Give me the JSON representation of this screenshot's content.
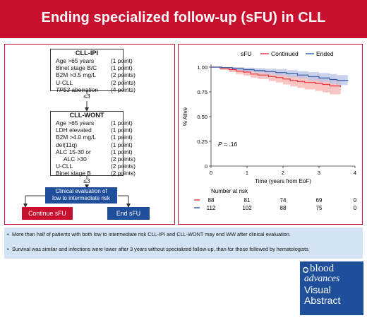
{
  "header": {
    "title": "Ending specialized follow-up (sFU) in CLL"
  },
  "flowchart": {
    "cll_ipi": {
      "title": "CLL-IPI",
      "criteria": [
        {
          "label": "Age >65 years",
          "points": "(1 point)",
          "italic": false,
          "indent": false
        },
        {
          "label": "Binet stage B/C",
          "points": "(1 point)",
          "italic": false,
          "indent": false
        },
        {
          "label": "B2M >3.5 mg/L",
          "points": "(2 points)",
          "italic": false,
          "indent": false
        },
        {
          "label": "U-CLL",
          "points": "(2 points)",
          "italic": false,
          "indent": false
        },
        {
          "label": "TP53",
          "suffix": " aberration",
          "points": "(4 points)",
          "italic": true,
          "indent": false
        }
      ]
    },
    "threshold_1": "≤3",
    "cll_wont": {
      "title": "CLL-WONT",
      "criteria": [
        {
          "label": "Age >65 years",
          "points": "(1 point)",
          "indent": false
        },
        {
          "label": "LDH elevated",
          "points": "(1 point)",
          "indent": false
        },
        {
          "label": "B2M >4.0 mg/L",
          "points": "(1 point)",
          "indent": false
        },
        {
          "label": "del(11q)",
          "points": "(1 point)",
          "indent": false
        },
        {
          "label": "ALC 15-30 or",
          "points": "(1 point)",
          "indent": false
        },
        {
          "label": "ALC >30",
          "points": "(2 points)",
          "indent": true
        },
        {
          "label": "U-CLL",
          "points": "(2 points)",
          "indent": false
        },
        {
          "label": "Binet stage B",
          "points": "(2 points)",
          "indent": false
        }
      ]
    },
    "threshold_2": "≤3",
    "evaluation": {
      "line1": "Clinical evaluation of",
      "line2": "low to intermediate risk"
    },
    "outcomes": {
      "continue": "Continue sFU",
      "end": "End sFU"
    }
  },
  "chart_data": {
    "type": "line",
    "subtype": "kaplan-meier",
    "legend_title": "sFU",
    "legend_position": "top",
    "series": [
      {
        "name": "Continued",
        "color": "#e8313a",
        "band_color": "#f5b1ae",
        "x": [
          0,
          0.25,
          0.5,
          0.7,
          0.9,
          1.1,
          1.3,
          1.6,
          1.8,
          2.0,
          2.2,
          2.4,
          2.6,
          2.9,
          3.1,
          3.3,
          3.6
        ],
        "y": [
          1.0,
          0.99,
          0.975,
          0.96,
          0.95,
          0.93,
          0.92,
          0.905,
          0.895,
          0.88,
          0.865,
          0.855,
          0.845,
          0.835,
          0.825,
          0.81,
          0.8
        ],
        "lower": [
          1.0,
          0.97,
          0.95,
          0.93,
          0.915,
          0.895,
          0.88,
          0.86,
          0.845,
          0.825,
          0.805,
          0.79,
          0.775,
          0.76,
          0.745,
          0.725,
          0.71
        ],
        "upper": [
          1.0,
          1.0,
          0.995,
          0.99,
          0.98,
          0.97,
          0.96,
          0.95,
          0.94,
          0.93,
          0.92,
          0.915,
          0.905,
          0.895,
          0.89,
          0.88,
          0.875
        ]
      },
      {
        "name": "Ended",
        "color": "#2e5aa6",
        "band_color": "#b9c3e4",
        "x": [
          0,
          0.3,
          0.6,
          0.9,
          1.2,
          1.5,
          1.8,
          2.1,
          2.4,
          2.7,
          3.0,
          3.3,
          3.5,
          3.8
        ],
        "y": [
          1.0,
          0.995,
          0.985,
          0.975,
          0.965,
          0.955,
          0.945,
          0.935,
          0.92,
          0.905,
          0.89,
          0.875,
          0.865,
          0.86
        ],
        "lower": [
          1.0,
          0.985,
          0.97,
          0.955,
          0.94,
          0.93,
          0.915,
          0.9,
          0.885,
          0.865,
          0.85,
          0.83,
          0.82,
          0.81
        ],
        "upper": [
          1.0,
          1.0,
          1.0,
          0.995,
          0.99,
          0.985,
          0.98,
          0.97,
          0.96,
          0.95,
          0.94,
          0.93,
          0.92,
          0.92
        ]
      }
    ],
    "xlabel": "Time (years from EoF)",
    "ylabel": "% Alive",
    "xlim": [
      0,
      4
    ],
    "ylim": [
      0,
      1.0
    ],
    "x_ticks": [
      "0",
      "1",
      "2",
      "3",
      "4"
    ],
    "y_ticks": [
      "0",
      "0.25",
      "0.50",
      "0.75",
      "1.00"
    ],
    "annotation": {
      "italic": "P",
      "rest": " = .16"
    },
    "risk_table": {
      "title": "Number at risk",
      "rows": [
        {
          "color": "#e8313a",
          "values": [
            "88",
            "81",
            "74",
            "69",
            "0"
          ]
        },
        {
          "color": "#2e5aa6",
          "values": [
            "112",
            "102",
            "88",
            "75",
            "0"
          ]
        }
      ]
    }
  },
  "summary": {
    "bullet_symbol": "•",
    "bullets": [
      "More than half of patients with both low to intermediate risk CLL-IPI and CLL-WONT may end WW after clinical evaluation.",
      "Survival was similar and infections were lower after 3 years without specialized follow-up, than for those followed by hematologists."
    ]
  },
  "logo": {
    "line1": "blood",
    "line2": "advances",
    "line3": "Visual",
    "line4": "Abstract"
  }
}
